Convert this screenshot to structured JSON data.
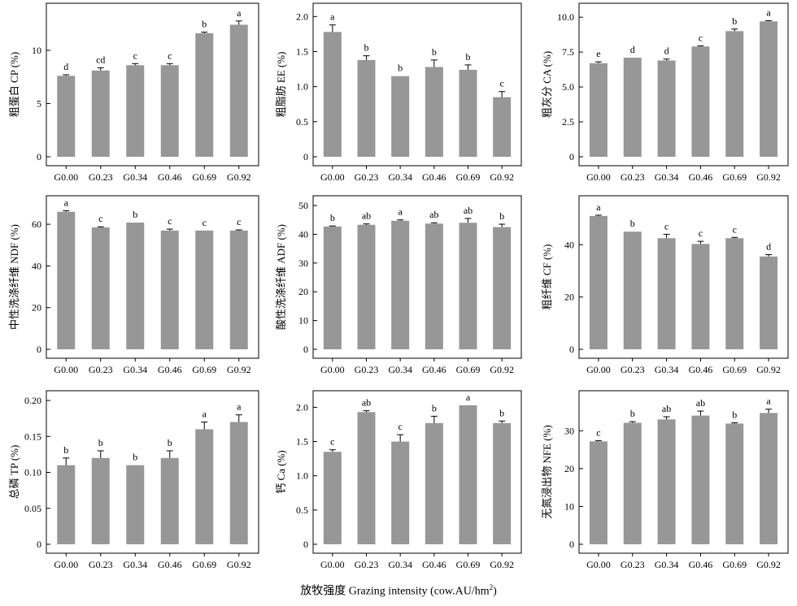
{
  "x_axis_label": "放牧强度 Grazing intensity (cow.AU/hm",
  "x_axis_label_sup": "2",
  "x_axis_label_end": ")",
  "chart_data": [
    {
      "type": "bar",
      "ylabel": "粗蛋白 CP (%)",
      "categories": [
        "G0.00",
        "G0.23",
        "G0.34",
        "G0.46",
        "G0.69",
        "G0.92"
      ],
      "values": [
        7.6,
        8.1,
        8.6,
        8.6,
        11.6,
        12.4
      ],
      "errors": [
        0.1,
        0.25,
        0.15,
        0.15,
        0.1,
        0.35
      ],
      "letters": [
        "d",
        "cd",
        "c",
        "c",
        "b",
        "a"
      ],
      "ylim": [
        0,
        13.5
      ],
      "yticks": [
        0,
        5,
        10
      ],
      "ytick_labels": [
        "0",
        "5",
        "10"
      ],
      "bar_color": "#979797"
    },
    {
      "type": "bar",
      "ylabel": "粗脂肪 EE (%)",
      "categories": [
        "G0.00",
        "G0.23",
        "G0.34",
        "G0.46",
        "G0.69",
        "G0.92"
      ],
      "values": [
        1.78,
        1.38,
        1.15,
        1.28,
        1.24,
        0.85
      ],
      "errors": [
        0.1,
        0.06,
        0.0,
        0.1,
        0.07,
        0.08
      ],
      "letters": [
        "a",
        "b",
        "b",
        "b",
        "b",
        "c"
      ],
      "ylim": [
        0,
        2.05
      ],
      "yticks": [
        0,
        0.5,
        1.0,
        1.5,
        2.0
      ],
      "ytick_labels": [
        "0",
        "0.5",
        "1.0",
        "1.5",
        "2.0"
      ],
      "bar_color": "#979797"
    },
    {
      "type": "bar",
      "ylabel": "粗灰分 CA (%)",
      "categories": [
        "G0.00",
        "G0.23",
        "G0.34",
        "G0.46",
        "G0.69",
        "G0.92"
      ],
      "values": [
        6.7,
        7.1,
        6.9,
        7.9,
        9.0,
        9.7
      ],
      "errors": [
        0.1,
        0.0,
        0.1,
        0.05,
        0.15,
        0.05
      ],
      "letters": [
        "e",
        "d",
        "d",
        "c",
        "b",
        "a"
      ],
      "ylim": [
        0,
        10.3
      ],
      "yticks": [
        0,
        2.5,
        5.0,
        7.5,
        10.0
      ],
      "ytick_labels": [
        "0",
        "2.5",
        "5.0",
        "7.5",
        "10.0"
      ],
      "bar_color": "#979797"
    },
    {
      "type": "bar",
      "ylabel": "中性洗涤纤维 NDF (%)",
      "categories": [
        "G0.00",
        "G0.23",
        "G0.34",
        "G0.46",
        "G0.69",
        "G0.92"
      ],
      "values": [
        66.0,
        58.5,
        60.8,
        57.0,
        57.0,
        57.0
      ],
      "errors": [
        0.5,
        0.3,
        0.0,
        0.7,
        0.0,
        0.3
      ],
      "letters": [
        "a",
        "c",
        "b",
        "c",
        "c",
        "c"
      ],
      "ylim": [
        0,
        69
      ],
      "yticks": [
        0,
        20,
        40,
        60
      ],
      "ytick_labels": [
        "0",
        "20",
        "40",
        "60"
      ],
      "bar_color": "#979797"
    },
    {
      "type": "bar",
      "ylabel": "酸性洗涤纤维 ADF (%)",
      "categories": [
        "G0.00",
        "G0.23",
        "G0.34",
        "G0.46",
        "G0.69",
        "G0.92"
      ],
      "values": [
        42.7,
        43.3,
        44.7,
        43.7,
        44.0,
        42.5
      ],
      "errors": [
        0.2,
        0.3,
        0.3,
        0.3,
        1.5,
        1.0
      ],
      "letters": [
        "b",
        "ab",
        "a",
        "ab",
        "ab",
        "b"
      ],
      "ylim": [
        0,
        50
      ],
      "yticks": [
        0,
        10,
        20,
        30,
        40,
        50
      ],
      "ytick_labels": [
        "0",
        "10",
        "20",
        "30",
        "40",
        "50"
      ],
      "bar_color": "#979797"
    },
    {
      "type": "bar",
      "ylabel": "粗纤维 CF (%)",
      "categories": [
        "G0.00",
        "G0.23",
        "G0.34",
        "G0.46",
        "G0.69",
        "G0.92"
      ],
      "values": [
        51.0,
        45.0,
        42.5,
        40.3,
        42.5,
        35.5
      ],
      "errors": [
        0.3,
        0.0,
        1.5,
        1.0,
        0.3,
        0.7
      ],
      "letters": [
        "a",
        "b",
        "c",
        "c",
        "c",
        "d"
      ],
      "ylim": [
        0,
        55
      ],
      "yticks": [
        0,
        20,
        40
      ],
      "ytick_labels": [
        "0",
        "20",
        "40"
      ],
      "bar_color": "#979797"
    },
    {
      "type": "bar",
      "ylabel": "总磷 TP (%)",
      "categories": [
        "G0.00",
        "G0.23",
        "G0.34",
        "G0.46",
        "G0.69",
        "G0.92"
      ],
      "values": [
        0.11,
        0.12,
        0.11,
        0.12,
        0.16,
        0.17
      ],
      "errors": [
        0.01,
        0.01,
        0.0,
        0.01,
        0.01,
        0.01
      ],
      "letters": [
        "b",
        "b",
        "b",
        "b",
        "a",
        "a"
      ],
      "ylim": [
        0,
        0.2
      ],
      "yticks": [
        0,
        0.05,
        0.1,
        0.15,
        0.2
      ],
      "ytick_labels": [
        "0",
        "0.05",
        "0.10",
        "0.15",
        "0.20"
      ],
      "bar_color": "#979797"
    },
    {
      "type": "bar",
      "ylabel": "钙 Ca (%)",
      "categories": [
        "G0.00",
        "G0.23",
        "G0.34",
        "G0.46",
        "G0.69",
        "G0.92"
      ],
      "values": [
        1.35,
        1.93,
        1.5,
        1.77,
        2.03,
        1.77
      ],
      "errors": [
        0.03,
        0.02,
        0.1,
        0.1,
        0.0,
        0.03
      ],
      "letters": [
        "c",
        "ab",
        "c",
        "b",
        "a",
        "b"
      ],
      "ylim": [
        0,
        2.1
      ],
      "yticks": [
        0,
        0.5,
        1.0,
        1.5,
        2.0
      ],
      "ytick_labels": [
        "0",
        "0.5",
        "1.0",
        "1.5",
        "2.0"
      ],
      "bar_color": "#979797"
    },
    {
      "type": "bar",
      "ylabel": "无氮浸出物 NFE (%)",
      "categories": [
        "G0.00",
        "G0.23",
        "G0.34",
        "G0.46",
        "G0.69",
        "G0.92"
      ],
      "values": [
        27.2,
        32.1,
        33.0,
        34.0,
        31.9,
        34.7
      ],
      "errors": [
        0.2,
        0.3,
        0.7,
        1.2,
        0.2,
        1.0
      ],
      "letters": [
        "c",
        "b",
        "ab",
        "ab",
        "b",
        "a"
      ],
      "ylim": [
        0,
        38
      ],
      "yticks": [
        0,
        10,
        20,
        30
      ],
      "ytick_labels": [
        "0",
        "10",
        "20",
        "30"
      ],
      "bar_color": "#979797"
    }
  ]
}
